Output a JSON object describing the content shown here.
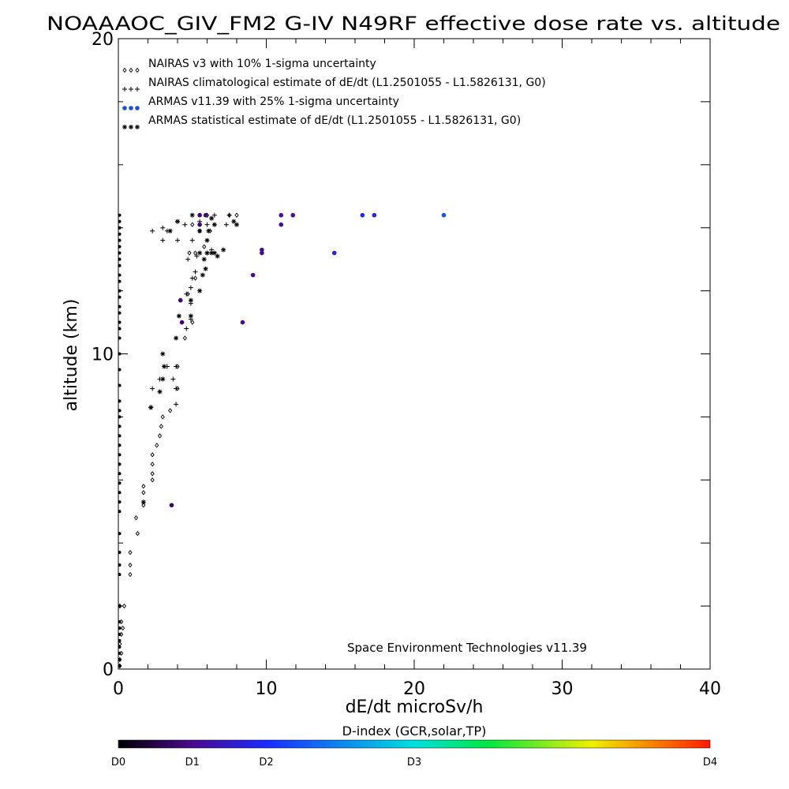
{
  "chart_data": {
    "type": "scatter",
    "title": "NOAAAOC_GIV_FM2 G-IV   N49RF  effective dose rate vs. altitude",
    "xlabel": "dE/dt microSv/h",
    "ylabel": "altitude (km)",
    "xlim": [
      0,
      40
    ],
    "ylim": [
      0,
      20
    ],
    "x_ticks": [
      "0",
      "10",
      "20",
      "30",
      "40"
    ],
    "y_ticks": [
      "0",
      "10",
      "20"
    ],
    "grid": false,
    "legend_position": "top-left",
    "credit": "Space Environment Technologies v11.39",
    "colorbar": {
      "title": "D-index (GCR,solar,TP)",
      "labels": [
        {
          "text": "D0",
          "pos": 0.0
        },
        {
          "text": "D1",
          "pos": 0.125
        },
        {
          "text": "D2",
          "pos": 0.25
        },
        {
          "text": "D3",
          "pos": 0.5
        },
        {
          "text": "D4",
          "pos": 1.0
        }
      ]
    },
    "series": [
      {
        "name": "NAIRAS v3 with 10% 1-sigma uncertainty",
        "marker": "diamond",
        "color": "#000000",
        "points": [
          [
            0.1,
            0.1
          ],
          [
            0.1,
            0.3
          ],
          [
            0.2,
            0.5
          ],
          [
            0.1,
            0.8
          ],
          [
            0.2,
            1.1
          ],
          [
            0.3,
            1.3
          ],
          [
            0.2,
            1.5
          ],
          [
            0.4,
            2.0
          ],
          [
            0.1,
            2.0
          ],
          [
            0.8,
            3.0
          ],
          [
            0.8,
            3.3
          ],
          [
            0.8,
            3.7
          ],
          [
            1.3,
            4.3
          ],
          [
            1.2,
            4.8
          ],
          [
            1.7,
            5.2
          ],
          [
            1.7,
            5.6
          ],
          [
            1.7,
            5.8
          ],
          [
            2.3,
            6.0
          ],
          [
            2.3,
            6.2
          ],
          [
            2.3,
            6.5
          ],
          [
            2.3,
            6.8
          ],
          [
            2.6,
            7.1
          ],
          [
            2.8,
            7.4
          ],
          [
            2.9,
            7.7
          ],
          [
            3.0,
            8.0
          ],
          [
            3.5,
            8.2
          ],
          [
            4.0,
            8.9
          ],
          [
            4.0,
            9.6
          ],
          [
            4.5,
            10.5
          ],
          [
            5.0,
            11.0
          ],
          [
            4.7,
            11.9
          ],
          [
            5.2,
            12.4
          ],
          [
            4.8,
            13.2
          ],
          [
            5.2,
            13.2
          ],
          [
            5.8,
            13.4
          ],
          [
            5.5,
            13.9
          ],
          [
            6.2,
            13.9
          ],
          [
            5.0,
            14.1
          ],
          [
            5.5,
            14.1
          ],
          [
            6.0,
            14.4
          ],
          [
            7.5,
            14.4
          ],
          [
            8.0,
            14.4
          ]
        ]
      },
      {
        "name": "NAIRAS climatological estimate of dE/dt (L1.2501055 - L1.5826131, G0)",
        "marker": "plus",
        "color": "#000000",
        "points": [
          [
            2.2,
            8.3
          ],
          [
            2.3,
            8.9
          ],
          [
            2.8,
            9.2
          ],
          [
            3.3,
            9.6
          ],
          [
            3.9,
            9.6
          ],
          [
            3.7,
            9.2
          ],
          [
            3.9,
            8.9
          ],
          [
            3.9,
            8.4
          ],
          [
            4.6,
            10.8
          ],
          [
            4.9,
            11.1
          ],
          [
            4.9,
            11.6
          ],
          [
            4.6,
            11.9
          ],
          [
            4.9,
            12.1
          ],
          [
            5.0,
            12.4
          ],
          [
            5.2,
            12.6
          ],
          [
            4.7,
            13.0
          ],
          [
            5.3,
            13.1
          ],
          [
            6.0,
            13.2
          ],
          [
            6.3,
            13.3
          ],
          [
            2.3,
            13.9
          ],
          [
            3.3,
            13.9
          ],
          [
            3.0,
            14.0
          ],
          [
            4.5,
            14.1
          ],
          [
            5.5,
            14.2
          ],
          [
            6.0,
            14.1
          ],
          [
            4.0,
            14.2
          ],
          [
            3.0,
            13.6
          ],
          [
            4.0,
            13.6
          ],
          [
            5.0,
            13.6
          ],
          [
            6.5,
            14.4
          ],
          [
            7.5,
            14.4
          ],
          [
            7.3,
            14.1
          ]
        ]
      },
      {
        "name": "ARMAS v11.39 with 25% 1-sigma uncertainty",
        "marker": "dot",
        "color": "#1f4fd6",
        "points": [
          [
            3.6,
            5.2,
            0.09
          ],
          [
            4.2,
            11.7,
            0.1
          ],
          [
            4.3,
            11.0,
            0.1
          ],
          [
            8.4,
            11.0,
            0.12
          ],
          [
            9.1,
            12.5,
            0.13
          ],
          [
            9.7,
            13.2,
            0.13
          ],
          [
            9.7,
            13.3,
            0.13
          ],
          [
            11.0,
            14.1,
            0.14
          ],
          [
            11.0,
            14.4,
            0.14
          ],
          [
            11.8,
            14.4,
            0.15
          ],
          [
            14.6,
            13.2,
            0.2
          ],
          [
            16.5,
            14.4,
            0.24
          ],
          [
            17.3,
            14.4,
            0.22
          ],
          [
            22.0,
            14.4,
            0.3
          ],
          [
            5.5,
            14.1,
            0.1
          ],
          [
            5.5,
            14.4,
            0.1
          ],
          [
            5.9,
            14.4,
            0.11
          ]
        ]
      },
      {
        "name": "ARMAS statistical estimate of dE/dt (L1.2501055 - L1.5826131, G0)",
        "marker": "asterisk",
        "color": "#000000",
        "points": [
          [
            1.7,
            5.3
          ],
          [
            2.2,
            8.3
          ],
          [
            2.8,
            8.8
          ],
          [
            3.0,
            9.2
          ],
          [
            3.1,
            9.6
          ],
          [
            3.0,
            10.0
          ],
          [
            3.9,
            10.5
          ],
          [
            4.1,
            11.2
          ],
          [
            4.9,
            11.2
          ],
          [
            4.9,
            11.7
          ],
          [
            5.5,
            12.0
          ],
          [
            5.7,
            12.5
          ],
          [
            5.9,
            12.7
          ],
          [
            5.8,
            13.0
          ],
          [
            6.7,
            13.1
          ],
          [
            7.1,
            13.3
          ],
          [
            6.3,
            13.2
          ],
          [
            6.0,
            13.6
          ],
          [
            6.1,
            13.9
          ],
          [
            5.5,
            13.9
          ],
          [
            6.3,
            14.3
          ],
          [
            6.5,
            14.1
          ],
          [
            7.8,
            14.2
          ],
          [
            8.0,
            14.1
          ],
          [
            5.5,
            13.2
          ],
          [
            6.0,
            13.2
          ],
          [
            6.5,
            13.2
          ],
          [
            3.5,
            13.9
          ],
          [
            4.0,
            14.2
          ],
          [
            5.0,
            14.4
          ]
        ]
      }
    ],
    "axis_markers": [
      0.1,
      0.3,
      0.5,
      0.7,
      0.9,
      1.1,
      1.3,
      1.5,
      2.0,
      3.0,
      3.3,
      3.7,
      4.3,
      5.0,
      5.3,
      5.6,
      5.9,
      6.2,
      6.5,
      6.8,
      7.1,
      7.4,
      7.7,
      8.0,
      8.2,
      8.5,
      9.0,
      9.5,
      10.0,
      10.5,
      10.8,
      11.0,
      11.3,
      11.5,
      11.8,
      12.0,
      12.3,
      12.5,
      12.8,
      13.0,
      13.2,
      13.4,
      13.6,
      13.8,
      14.0,
      14.2,
      14.4
    ]
  }
}
